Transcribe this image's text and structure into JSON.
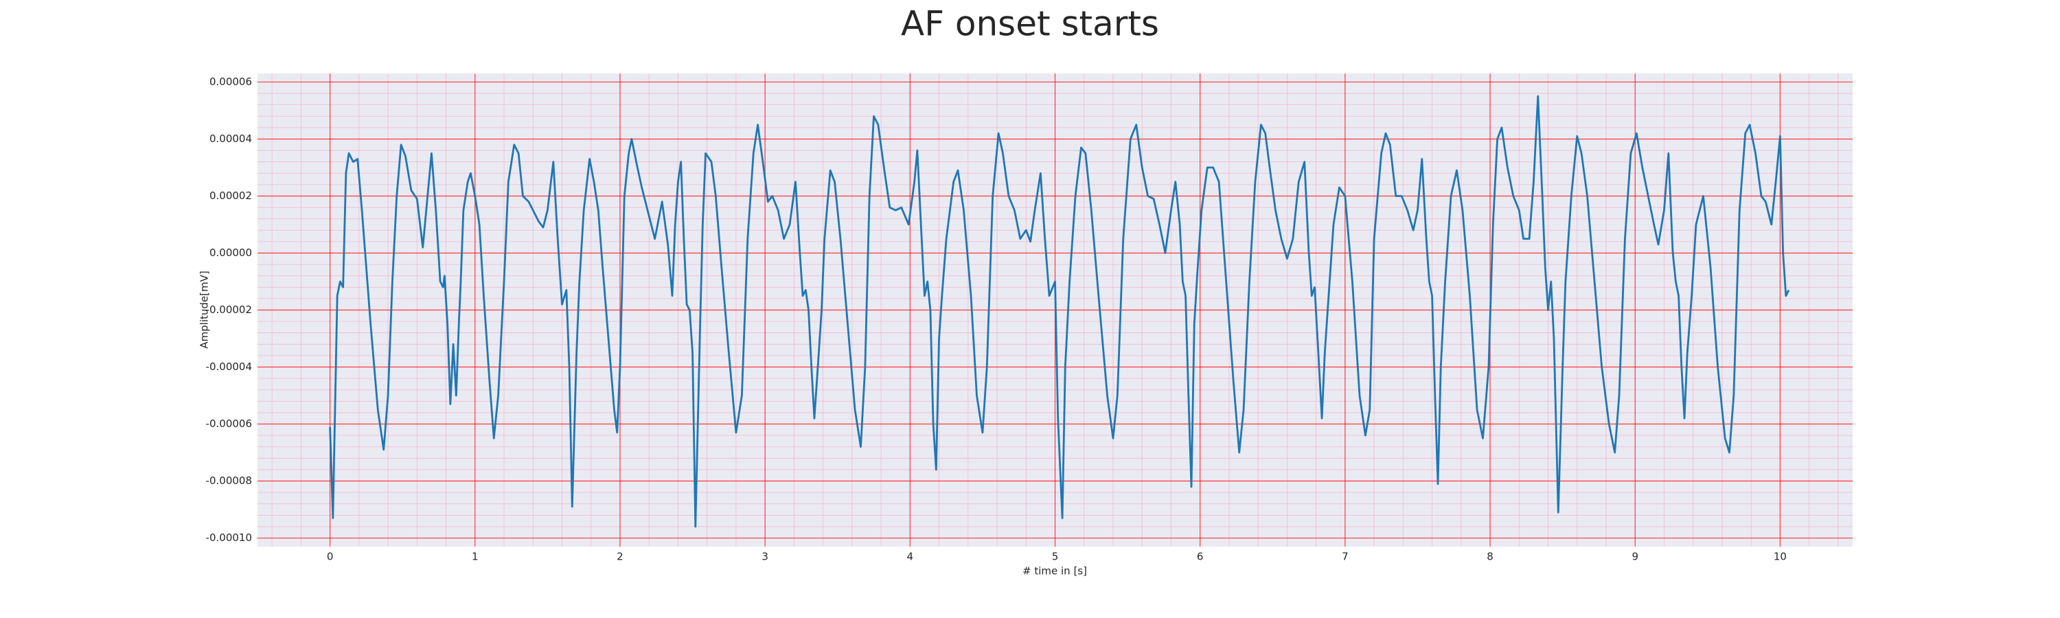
{
  "chart_data": {
    "type": "line",
    "title": "AF onset starts",
    "xlabel": "# time in [s]",
    "ylabel": "Amplitude[mV]",
    "xlim": [
      -0.5,
      10.5
    ],
    "ylim": [
      -0.000103,
      6.3e-05
    ],
    "xticks": [
      0,
      1,
      2,
      3,
      4,
      5,
      6,
      7,
      8,
      9,
      10
    ],
    "yticks": [
      {
        "value": -0.0001,
        "label": "-0.00010"
      },
      -8e-05,
      -6e-05,
      -4e-05,
      -2e-05,
      {
        "value": 0,
        "label": "0.00000"
      },
      2e-05,
      4e-05,
      6e-05
    ],
    "grid": true,
    "minor_grid": true,
    "grid_color": "#ff0000",
    "minor_grid_color": "#f4a8c0",
    "background": "#eaeaf2",
    "color": "#1f77b4",
    "x": [
      0,
      0.02,
      0.05,
      0.07,
      0.09,
      0.11,
      0.13,
      0.16,
      0.19,
      0.22,
      0.28,
      0.33,
      0.37,
      0.4,
      0.43,
      0.46,
      0.49,
      0.52,
      0.56,
      0.6,
      0.64,
      0.7,
      0.73,
      0.76,
      0.78,
      0.79,
      0.81,
      0.83,
      0.85,
      0.87,
      0.89,
      0.9,
      0.92,
      0.95,
      0.97,
      1.0,
      1.03,
      1.06,
      1.1,
      1.13,
      1.16,
      1.2,
      1.23,
      1.27,
      1.3,
      1.33,
      1.37,
      1.4,
      1.44,
      1.47,
      1.5,
      1.54,
      1.57,
      1.6,
      1.63,
      1.65,
      1.67,
      1.7,
      1.72,
      1.75,
      1.79,
      1.82,
      1.85,
      1.88,
      1.92,
      1.96,
      1.98,
      2.0,
      2.03,
      2.06,
      2.08,
      2.12,
      2.15,
      2.19,
      2.24,
      2.29,
      2.33,
      2.36,
      2.38,
      2.4,
      2.42,
      2.44,
      2.46,
      2.48,
      2.5,
      2.52,
      2.55,
      2.57,
      2.59,
      2.63,
      2.66,
      2.7,
      2.75,
      2.8,
      2.84,
      2.88,
      2.92,
      2.95,
      2.99,
      3.02,
      3.05,
      3.09,
      3.13,
      3.17,
      3.21,
      3.24,
      3.26,
      3.28,
      3.3,
      3.32,
      3.34,
      3.36,
      3.39,
      3.41,
      3.45,
      3.48,
      3.52,
      3.57,
      3.62,
      3.66,
      3.69,
      3.72,
      3.75,
      3.78,
      3.82,
      3.86,
      3.9,
      3.94,
      3.99,
      4.03,
      4.05,
      4.08,
      4.1,
      4.12,
      4.14,
      4.16,
      4.18,
      4.2,
      4.22,
      4.25,
      4.3,
      4.33,
      4.37,
      4.42,
      4.46,
      4.5,
      4.53,
      4.57,
      4.61,
      4.64,
      4.68,
      4.72,
      4.76,
      4.8,
      4.83,
      4.86,
      4.9,
      4.93,
      4.96,
      5.0,
      5.02,
      5.05,
      5.07,
      5.1,
      5.14,
      5.18,
      5.21,
      5.25,
      5.3,
      5.36,
      5.4,
      5.43,
      5.47,
      5.52,
      5.56,
      5.6,
      5.64,
      5.68,
      5.72,
      5.76,
      5.8,
      5.83,
      5.86,
      5.88,
      5.9,
      5.92,
      5.94,
      5.96,
      5.98,
      6.01,
      6.05,
      6.09,
      6.13,
      6.18,
      6.23,
      6.27,
      6.3,
      6.34,
      6.38,
      6.42,
      6.45,
      6.48,
      6.52,
      6.56,
      6.6,
      6.64,
      6.68,
      6.72,
      6.75,
      6.77,
      6.79,
      6.81,
      6.84,
      6.86,
      6.88,
      6.92,
      6.96,
      7.0,
      7.05,
      7.1,
      7.14,
      7.17,
      7.2,
      7.25,
      7.28,
      7.31,
      7.35,
      7.39,
      7.43,
      7.47,
      7.5,
      7.53,
      7.56,
      7.58,
      7.6,
      7.62,
      7.64,
      7.66,
      7.69,
      7.73,
      7.77,
      7.81,
      7.86,
      7.91,
      7.95,
      7.99,
      8.02,
      8.05,
      8.08,
      8.12,
      8.16,
      8.2,
      8.23,
      8.27,
      8.3,
      8.33,
      8.36,
      8.38,
      8.4,
      8.42,
      8.44,
      8.47,
      8.5,
      8.52,
      8.56,
      8.6,
      8.63,
      8.67,
      8.72,
      8.77,
      8.82,
      8.86,
      8.89,
      8.93,
      8.97,
      9.01,
      9.05,
      9.09,
      9.13,
      9.16,
      9.2,
      9.23,
      9.26,
      9.28,
      9.3,
      9.32,
      9.34,
      9.36,
      9.39,
      9.42,
      9.47,
      9.52,
      9.57,
      9.62,
      9.65,
      9.68,
      9.72,
      9.76,
      9.79,
      9.83,
      9.87,
      9.9,
      9.94,
      9.97,
      10.0,
      10.02,
      10.04,
      10.06
    ],
    "values": [
      -6.1e-05,
      -9.3e-05,
      -1.5e-05,
      -1e-05,
      -1.2e-05,
      2.8e-05,
      3.5e-05,
      3.2e-05,
      3.3e-05,
      1.5e-05,
      -2.5e-05,
      -5.5e-05,
      -6.9e-05,
      -5e-05,
      -1e-05,
      2e-05,
      3.8e-05,
      3.4e-05,
      2.2e-05,
      1.9e-05,
      2e-06,
      3.5e-05,
      1.5e-05,
      -1e-05,
      -1.2e-05,
      -8e-06,
      -2.5e-05,
      -5.3e-05,
      -3.2e-05,
      -5e-05,
      -2.3e-05,
      -1.2e-05,
      1.5e-05,
      2.5e-05,
      2.8e-05,
      2e-05,
      1e-05,
      -1.5e-05,
      -4.5e-05,
      -6.5e-05,
      -5e-05,
      -1e-05,
      2.5e-05,
      3.8e-05,
      3.5e-05,
      2e-05,
      1.8e-05,
      1.5e-05,
      1.1e-05,
      9e-06,
      1.5e-05,
      3.2e-05,
      5e-06,
      -1.8e-05,
      -1.3e-05,
      -4e-05,
      -8.9e-05,
      -3.5e-05,
      -1e-05,
      1.5e-05,
      3.3e-05,
      2.5e-05,
      1.5e-05,
      -5e-06,
      -3e-05,
      -5.5e-05,
      -6.3e-05,
      -4e-05,
      2e-05,
      3.5e-05,
      4e-05,
      3e-05,
      2.3e-05,
      1.5e-05,
      5e-06,
      1.8e-05,
      3e-06,
      -1.5e-05,
      1e-05,
      2.5e-05,
      3.2e-05,
      5e-06,
      -1.8e-05,
      -2e-05,
      -3.5e-05,
      -9.6e-05,
      -3e-05,
      1e-05,
      3.5e-05,
      3.2e-05,
      2e-05,
      -5e-06,
      -3.5e-05,
      -6.3e-05,
      -5e-05,
      5e-06,
      3.5e-05,
      4.5e-05,
      3e-05,
      1.8e-05,
      2e-05,
      1.5e-05,
      5e-06,
      1e-05,
      2.5e-05,
      0,
      -1.5e-05,
      -1.3e-05,
      -2e-05,
      -4e-05,
      -5.8e-05,
      -4.3e-05,
      -2e-05,
      5e-06,
      2.9e-05,
      2.5e-05,
      5e-06,
      -2.5e-05,
      -5.5e-05,
      -6.8e-05,
      -4e-05,
      2e-05,
      4.8e-05,
      4.5e-05,
      3e-05,
      1.6e-05,
      1.5e-05,
      1.6e-05,
      1e-05,
      2.5e-05,
      3.6e-05,
      5e-06,
      -1.5e-05,
      -1e-05,
      -2e-05,
      -6e-05,
      -7.6e-05,
      -3e-05,
      -1.5e-05,
      5e-06,
      2.5e-05,
      2.9e-05,
      1.5e-05,
      -1.5e-05,
      -5e-05,
      -6.3e-05,
      -4e-05,
      2e-05,
      4.2e-05,
      3.5e-05,
      2e-05,
      1.5e-05,
      5e-06,
      8e-06,
      4e-06,
      1.5e-05,
      2.8e-05,
      5e-06,
      -1.5e-05,
      -1e-05,
      -5.8e-05,
      -9.3e-05,
      -4e-05,
      -1e-05,
      2e-05,
      3.7e-05,
      3.5e-05,
      1.5e-05,
      -1.5e-05,
      -5e-05,
      -6.5e-05,
      -5e-05,
      5e-06,
      4e-05,
      4.5e-05,
      3e-05,
      2e-05,
      1.9e-05,
      1e-05,
      0,
      1.5e-05,
      2.5e-05,
      1e-05,
      -1e-05,
      -1.5e-05,
      -5e-05,
      -8.2e-05,
      -2.5e-05,
      -8e-06,
      1.5e-05,
      3e-05,
      3e-05,
      2.5e-05,
      -1e-05,
      -4.5e-05,
      -7e-05,
      -5.5e-05,
      -1e-05,
      2.5e-05,
      4.5e-05,
      4.2e-05,
      3e-05,
      1.5e-05,
      5e-06,
      -2e-06,
      5e-06,
      2.5e-05,
      3.2e-05,
      0,
      -1.5e-05,
      -1.2e-05,
      -3e-05,
      -5.8e-05,
      -3.5e-05,
      -2e-05,
      1e-05,
      2.3e-05,
      2e-05,
      -1e-05,
      -5e-05,
      -6.4e-05,
      -5.5e-05,
      5e-06,
      3.5e-05,
      4.2e-05,
      3.8e-05,
      2e-05,
      2e-05,
      1.5e-05,
      8e-06,
      1.5e-05,
      3.3e-05,
      5e-06,
      -1e-05,
      -1.5e-05,
      -5e-05,
      -8.1e-05,
      -4e-05,
      -1e-05,
      2e-05,
      2.9e-05,
      1.5e-05,
      -1.5e-05,
      -5.5e-05,
      -6.5e-05,
      -4e-05,
      1e-05,
      4e-05,
      4.4e-05,
      3e-05,
      2e-05,
      1.5e-05,
      5e-06,
      5e-06,
      2.5e-05,
      5.5e-05,
      2e-05,
      -5e-06,
      -2e-05,
      -1e-05,
      -3e-05,
      -9.1e-05,
      -4e-05,
      -1e-05,
      2e-05,
      4.1e-05,
      3.5e-05,
      2e-05,
      -1e-05,
      -4e-05,
      -6e-05,
      -7e-05,
      -5e-05,
      5e-06,
      3.5e-05,
      4.2e-05,
      3e-05,
      2e-05,
      1e-05,
      3e-06,
      1.5e-05,
      3.5e-05,
      0,
      -1e-05,
      -1.5e-05,
      -4e-05,
      -5.8e-05,
      -3.5e-05,
      -1.5e-05,
      1e-05,
      2e-05,
      -5e-06,
      -4e-05,
      -6.5e-05,
      -7e-05,
      -5e-05,
      1.5e-05,
      4.2e-05,
      4.5e-05,
      3.5e-05,
      2e-05,
      1.8e-05,
      1e-05,
      2.5e-05,
      4.1e-05,
      0,
      -1.5e-05,
      -1.3e-05
    ]
  }
}
